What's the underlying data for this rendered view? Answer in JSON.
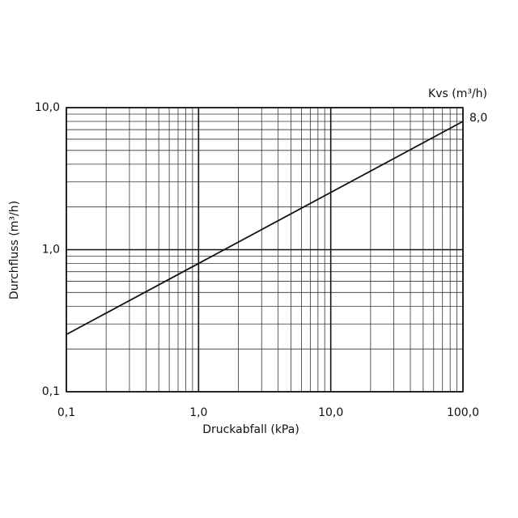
{
  "chart_data": {
    "type": "line",
    "x_label": "Druckabfall (kPa)",
    "y_label": "Durchfluss (m³/h)",
    "legend_title": "Kvs (m³/h)",
    "x_log": true,
    "y_log": true,
    "grid": true,
    "xlim": [
      0.1,
      100
    ],
    "ylim": [
      0.1,
      10
    ],
    "xticks": [
      {
        "value": 0.1,
        "label": "0,1"
      },
      {
        "value": 1,
        "label": "1,0"
      },
      {
        "value": 10,
        "label": "10,0"
      },
      {
        "value": 100,
        "label": "100,0"
      }
    ],
    "yticks": [
      {
        "value": 0.1,
        "label": "0,1"
      },
      {
        "value": 1,
        "label": "1,0"
      },
      {
        "value": 10,
        "label": "10,0"
      }
    ],
    "x_minor_grid": [
      0.2,
      0.3,
      0.4,
      0.5,
      0.6,
      0.7,
      0.8,
      0.9,
      2,
      3,
      4,
      5,
      6,
      7,
      8,
      9,
      20,
      30,
      40,
      50,
      60,
      70,
      80,
      90
    ],
    "y_minor_grid": [
      0.2,
      0.3,
      0.4,
      0.5,
      0.6,
      0.7,
      0.8,
      0.9,
      2,
      3,
      4,
      5,
      6,
      7,
      8,
      9
    ],
    "x": [
      0.1,
      100
    ],
    "series": [
      {
        "name": "8,0",
        "color": "#111111",
        "values": [
          0.253,
          8.0
        ]
      }
    ]
  }
}
